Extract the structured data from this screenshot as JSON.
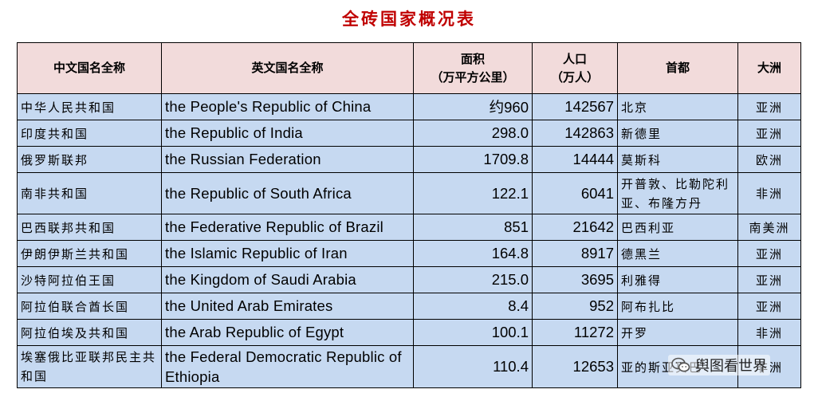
{
  "title": "全砖国家概况表",
  "headers": {
    "cn_name": "中文国名全称",
    "en_name": "英文国名全称",
    "area_line1": "面积",
    "area_line2": "（万平方公里）",
    "pop_line1": "人口",
    "pop_line2": "（万人）",
    "capital": "首都",
    "continent": "大洲"
  },
  "rows": [
    {
      "cn": "中华人民共和国",
      "en": "the People's Republic of China",
      "area": "约960",
      "population": "142567",
      "capital": "北京",
      "continent": "亚洲"
    },
    {
      "cn": "印度共和国",
      "en": "the Republic of India",
      "area": "298.0",
      "population": "142863",
      "capital": "新德里",
      "continent": "亚洲"
    },
    {
      "cn": "俄罗斯联邦",
      "en": "the Russian Federation",
      "area": "1709.8",
      "population": "14444",
      "capital": "莫斯科",
      "continent": "欧洲"
    },
    {
      "cn": "南非共和国",
      "en": "the Republic of South Africa",
      "area": "122.1",
      "population": "6041",
      "capital": "开普敦、比勒陀利亚、布隆方丹",
      "continent": "非洲"
    },
    {
      "cn": "巴西联邦共和国",
      "en": "the Federative Republic of Brazil",
      "area": "851",
      "population": "21642",
      "capital": "巴西利亚",
      "continent": "南美洲"
    },
    {
      "cn": "伊朗伊斯兰共和国",
      "en": "the Islamic Republic of Iran",
      "area": "164.8",
      "population": "8917",
      "capital": "德黑兰",
      "continent": "亚洲"
    },
    {
      "cn": "沙特阿拉伯王国",
      "en": "the Kingdom of Saudi Arabia",
      "area": "215.0",
      "population": "3695",
      "capital": "利雅得",
      "continent": "亚洲"
    },
    {
      "cn": "阿拉伯联合酋长国",
      "en": "the United Arab Emirates",
      "area": "8.4",
      "population": "952",
      "capital": "阿布扎比",
      "continent": "亚洲"
    },
    {
      "cn": "阿拉伯埃及共和国",
      "en": "the Arab Republic of Egypt",
      "area": "100.1",
      "population": "11272",
      "capital": "开罗",
      "continent": "非洲"
    },
    {
      "cn": "埃塞俄比亚联邦民主共和国",
      "en": "the Federal Democratic Republic of Ethiopia",
      "area": "110.4",
      "population": "12653",
      "capital": "亚的斯亚贝巴",
      "continent": "非洲"
    }
  ],
  "watermark": {
    "text": "舆图看世界",
    "icon": "wechat-icon"
  },
  "colors": {
    "title": "#c00000",
    "header_bg": "#f2dbdb",
    "row_bg": "#c6d9f1"
  }
}
